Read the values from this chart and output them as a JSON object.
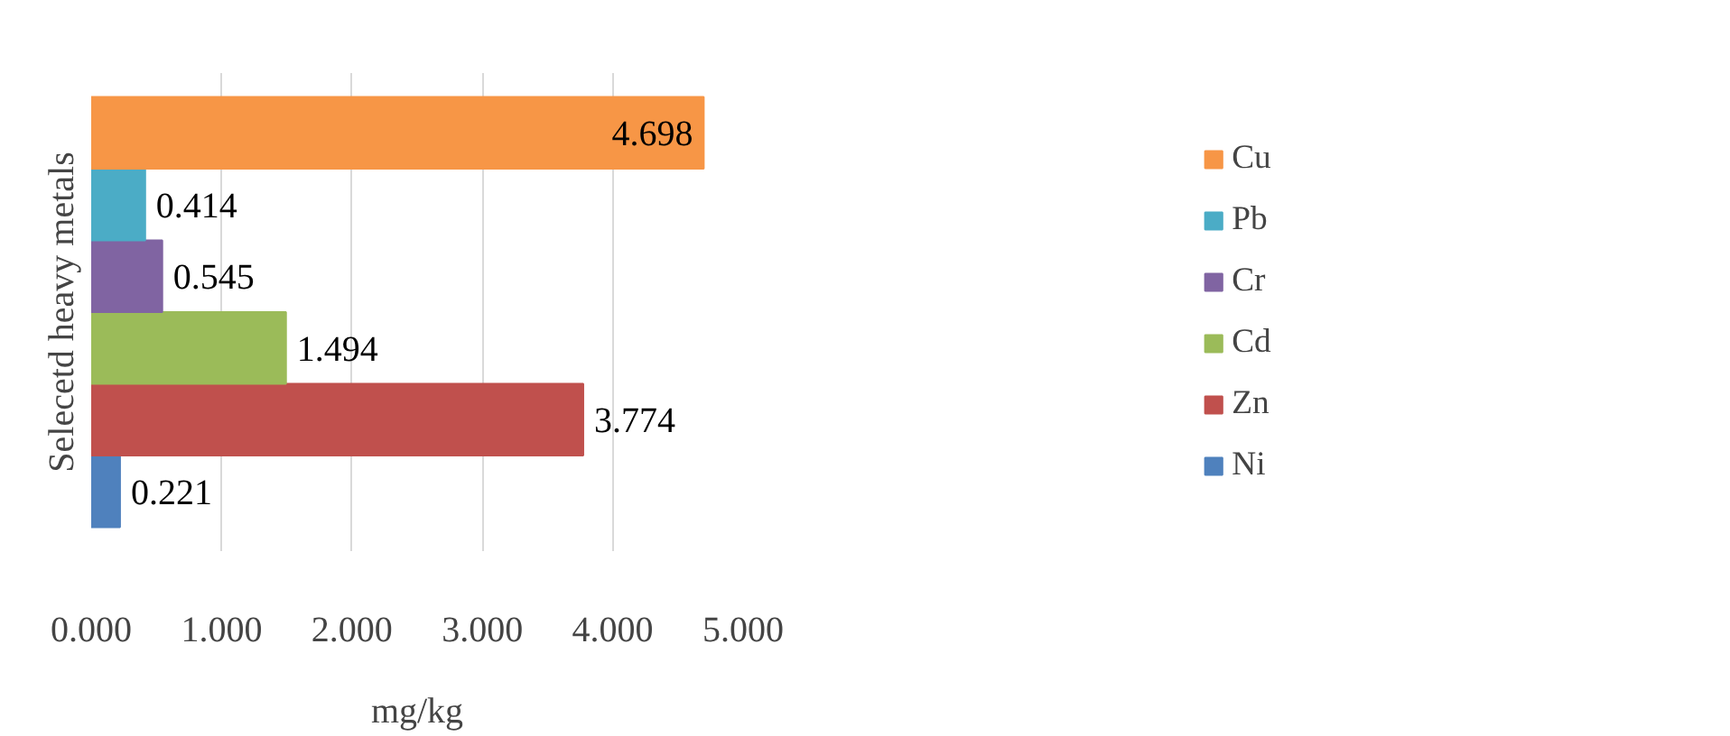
{
  "chart_data": {
    "type": "bar",
    "orientation": "horizontal",
    "categories": [
      null
    ],
    "ylabel": "Selecetd heavy metals",
    "xlabel": "mg/kg",
    "xlim": [
      0,
      5
    ],
    "xticks": [
      {
        "value": 0,
        "label": "0.000"
      },
      {
        "value": 1,
        "label": "1.000"
      },
      {
        "value": 2,
        "label": "2.000"
      },
      {
        "value": 3,
        "label": "3.000"
      },
      {
        "value": 4,
        "label": "4.000"
      },
      {
        "value": 5,
        "label": "5.000"
      }
    ],
    "series": [
      {
        "name": "Ni",
        "color": "#4f81bd",
        "values": [
          0.221
        ]
      },
      {
        "name": "Zn",
        "color": "#c0504d",
        "values": [
          3.774
        ]
      },
      {
        "name": "Cd",
        "color": "#9bbb59",
        "values": [
          1.494
        ]
      },
      {
        "name": "Cr",
        "color": "#8064a2",
        "values": [
          0.545
        ]
      },
      {
        "name": "Pb",
        "color": "#4bacc6",
        "values": [
          0.414
        ]
      },
      {
        "name": "Cu",
        "color": "#f79646",
        "values": [
          4.698
        ]
      }
    ],
    "data_labels": true,
    "grid": "x",
    "legend": "right",
    "tick_labels": "x"
  }
}
